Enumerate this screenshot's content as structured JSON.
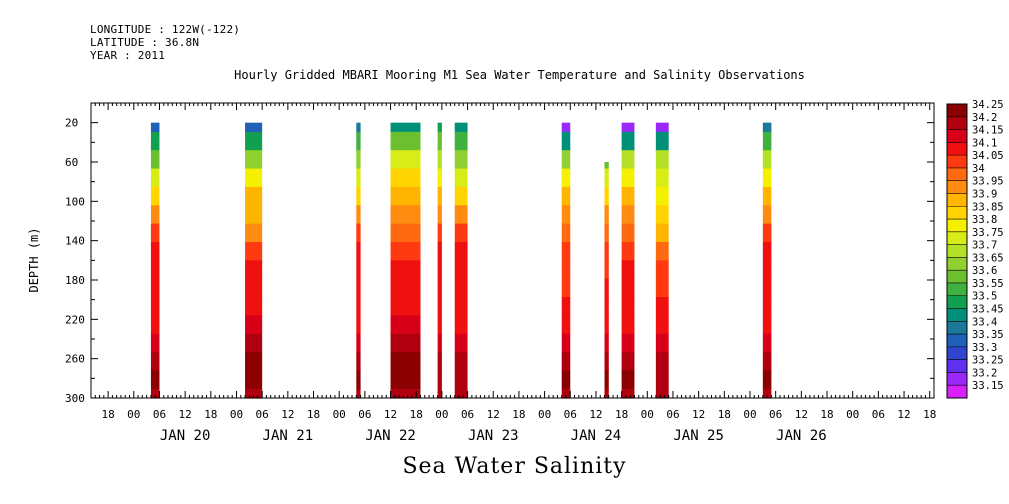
{
  "header": {
    "longitude": "LONGITUDE : 122W(-122)",
    "latitude": "LATITUDE : 36.8N",
    "year": "YEAR : 2011"
  },
  "title": "Hourly Gridded MBARI Mooring M1 Sea Water Temperature and Salinity Observations",
  "footer": "Sea Water Salinity",
  "chart_data": {
    "type": "heatmap",
    "title": "Hourly Gridded MBARI Mooring M1 Sea Water Temperature and Salinity Observations",
    "xlabel": "",
    "ylabel": "DEPTH (m)",
    "y_inverted": true,
    "ylim": [
      300,
      0
    ],
    "yticks": [
      20,
      60,
      100,
      140,
      180,
      220,
      260,
      300
    ],
    "hour_tick_labels": [
      "00",
      "06",
      "12",
      "18"
    ],
    "day_labels": [
      "JAN 20",
      "JAN 21",
      "JAN 22",
      "JAN 23",
      "JAN 24",
      "JAN 25",
      "JAN 26"
    ],
    "colorbar": {
      "levels": [
        "34.25",
        "34.2",
        "34.15",
        "34.1",
        "34.05",
        "34",
        "33.95",
        "33.9",
        "33.85",
        "33.8",
        "33.75",
        "33.7",
        "33.65",
        "33.6",
        "33.55",
        "33.5",
        "33.45",
        "33.4",
        "33.35",
        "33.3",
        "33.25",
        "33.2",
        "33.15"
      ],
      "colors": [
        "#8b0000",
        "#b00010",
        "#d80018",
        "#f01010",
        "#ff3a10",
        "#ff6a10",
        "#ff8c10",
        "#ffb400",
        "#ffd400",
        "#f4f000",
        "#d8ec18",
        "#b4e028",
        "#90d030",
        "#6cc030",
        "#40b040",
        "#10a050",
        "#00907a",
        "#1a7898",
        "#2060b8",
        "#3044d0",
        "#6030f0",
        "#9a28f8",
        "#d820f8"
      ]
    },
    "x_units": "hours since JAN 20 00",
    "segments": [
      {
        "x_start": 4,
        "x_end": 6,
        "depth_top": 20,
        "salinity": [
          33.35,
          33.5,
          33.62,
          33.75,
          33.85,
          33.95,
          34.05,
          34.1,
          34.1,
          34.1,
          34.1,
          34.12,
          34.15,
          34.2,
          34.25,
          34.2
        ]
      },
      {
        "x_start": 26,
        "x_end": 30,
        "depth_top": 20,
        "salinity": [
          33.35,
          33.5,
          33.65,
          33.8,
          33.9,
          33.9,
          33.95,
          34.05,
          34.1,
          34.1,
          34.1,
          34.15,
          34.2,
          34.25,
          34.25,
          34.2
        ]
      },
      {
        "x_start": 52,
        "x_end": 53,
        "depth_top": 20,
        "salinity": [
          33.4,
          33.55,
          33.65,
          33.75,
          33.85,
          33.95,
          34.05,
          34.1,
          34.1,
          34.1,
          34.1,
          34.12,
          34.15,
          34.2,
          34.25,
          34.2
        ]
      },
      {
        "x_start": 60,
        "x_end": 67,
        "depth_top": 20,
        "salinity": [
          33.45,
          33.6,
          33.75,
          33.85,
          33.9,
          33.95,
          34,
          34.05,
          34.1,
          34.1,
          34.12,
          34.15,
          34.2,
          34.25,
          34.25,
          34.2
        ]
      },
      {
        "x_start": 71,
        "x_end": 72,
        "depth_top": 20,
        "salinity": [
          33.5,
          33.6,
          33.7,
          33.8,
          33.9,
          33.95,
          34.05,
          34.1,
          34.1,
          34.1,
          34.1,
          34.12,
          34.15,
          34.2,
          34.2,
          34.2
        ]
      },
      {
        "x_start": 75,
        "x_end": 78,
        "depth_top": 20,
        "salinity": [
          33.45,
          33.55,
          33.65,
          33.75,
          33.85,
          33.95,
          34.05,
          34.1,
          34.1,
          34.1,
          34.1,
          34.12,
          34.15,
          34.2,
          34.2,
          34.2
        ]
      },
      {
        "x_start": 100,
        "x_end": 102,
        "depth_top": 20,
        "salinity": [
          33.2,
          33.45,
          33.65,
          33.8,
          33.9,
          33.95,
          34,
          34.05,
          34.05,
          34.05,
          34.1,
          34.12,
          34.15,
          34.2,
          34.25,
          34.2
        ]
      },
      {
        "x_start": 110,
        "x_end": 111,
        "depth_top": 60,
        "salinity": [
          33.6,
          33.6,
          33.6,
          33.75,
          33.85,
          33.95,
          34,
          34.05,
          34.05,
          34.1,
          34.1,
          34.12,
          34.15,
          34.2,
          34.25,
          34.2
        ]
      },
      {
        "x_start": 114,
        "x_end": 117,
        "depth_top": 20,
        "salinity": [
          33.2,
          33.45,
          33.7,
          33.8,
          33.9,
          33.95,
          34,
          34.05,
          34.1,
          34.1,
          34.1,
          34.12,
          34.15,
          34.2,
          34.25,
          34.2
        ]
      },
      {
        "x_start": 122,
        "x_end": 125,
        "depth_top": 20,
        "salinity": [
          33.2,
          33.45,
          33.7,
          33.78,
          33.8,
          33.85,
          33.9,
          34,
          34.05,
          34.05,
          34.1,
          34.12,
          34.15,
          34.2,
          34.2,
          34.2
        ]
      },
      {
        "x_start": 147,
        "x_end": 149,
        "depth_top": 20,
        "salinity": [
          33.4,
          33.55,
          33.7,
          33.8,
          33.9,
          33.95,
          34.05,
          34.1,
          34.1,
          34.1,
          34.1,
          34.12,
          34.15,
          34.2,
          34.25,
          34.2
        ]
      }
    ]
  }
}
